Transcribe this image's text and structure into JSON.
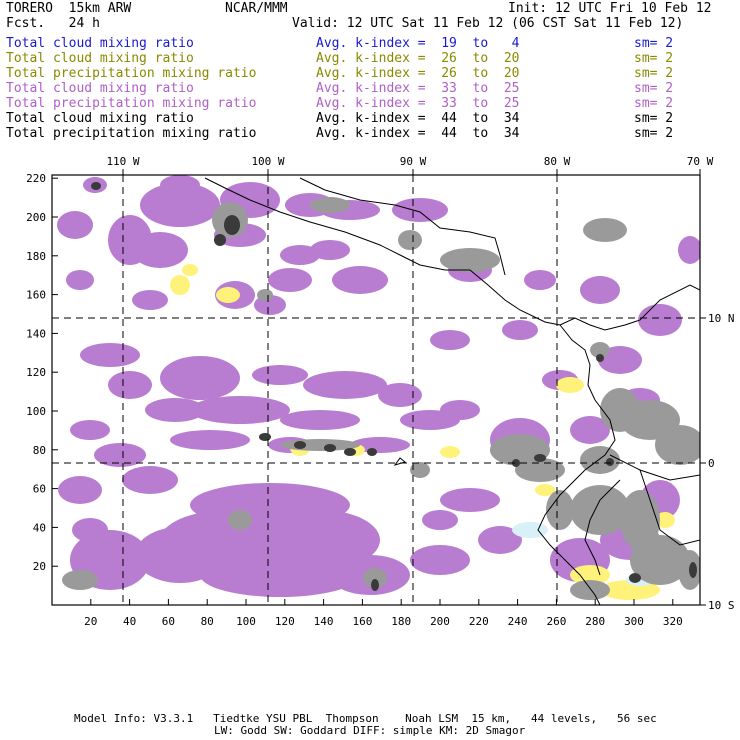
{
  "header": {
    "model_title": "TORERO  15km ARW",
    "center": "NCAR/MMM",
    "init": "Init: 12 UTC Fri 10 Feb 12",
    "forecast": "Fcst.   24 h",
    "valid": "Valid: 12 UTC Sat 11 Feb 12 (06 CST Sat 11 Feb 12)"
  },
  "legend": [
    {
      "field": "Total cloud mixing ratio",
      "kindex": "Avg. k-index =  19  to   4",
      "sm": "sm= 2",
      "color": "#1a1ad0"
    },
    {
      "field": "Total cloud mixing ratio",
      "kindex": "Avg. k-index =  26  to  20",
      "sm": "sm= 2",
      "color": "#8a8a00"
    },
    {
      "field": "Total precipitation mixing ratio",
      "kindex": "Avg. k-index =  26  to  20",
      "sm": "sm= 2",
      "color": "#8a8a00"
    },
    {
      "field": "Total cloud mixing ratio",
      "kindex": "Avg. k-index =  33  to  25",
      "sm": "sm= 2",
      "color": "#b060c8"
    },
    {
      "field": "Total precipitation mixing ratio",
      "kindex": "Avg. k-index =  33  to  25",
      "sm": "sm= 2",
      "color": "#b060c8"
    },
    {
      "field": "Total cloud mixing ratio",
      "kindex": "Avg. k-index =  44  to  34",
      "sm": "sm= 2",
      "color": "#000000"
    },
    {
      "field": "Total precipitation mixing ratio",
      "kindex": "Avg. k-index =  44  to  34",
      "sm": "sm= 2",
      "color": "#000000"
    }
  ],
  "map": {
    "top_longitudes": [
      "110 W",
      "100 W",
      "90 W",
      "80 W",
      "70 W"
    ],
    "right_latitudes": [
      "10 N",
      "0",
      "10 S"
    ],
    "x_ticks": [
      "20",
      "40",
      "60",
      "80",
      "100",
      "120",
      "140",
      "160",
      "180",
      "200",
      "220",
      "240",
      "260",
      "280",
      "300",
      "320"
    ],
    "y_ticks": [
      "20",
      "40",
      "60",
      "80",
      "100",
      "120",
      "140",
      "160",
      "180",
      "200",
      "220"
    ],
    "colors": {
      "purple": "#b87cd0",
      "yellow": "#fff27a",
      "gray": "#9a9a9a",
      "dark": "#3a3a3a",
      "lightblue": "#d8f0f8"
    }
  },
  "footer": {
    "line1": "Model Info: V3.3.1   Tiedtke YSU PBL  Thompson    Noah LSM  15 km,   44 levels,   56 sec",
    "line2": "LW: Godd SW: Goddard DIFF: simple KM: 2D Smagor"
  }
}
